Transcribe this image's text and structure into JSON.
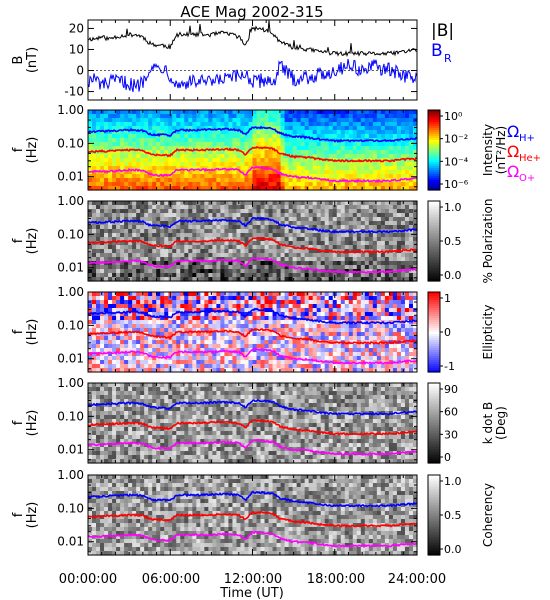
{
  "title": "ACE Mag 2002-315",
  "colors": {
    "black": "#000000",
    "blue": "#0000ff",
    "red": "#ff0000",
    "magenta": "#ff00ff"
  },
  "top_legend": {
    "b_abs": "|B|",
    "b_r": "B",
    "b_r_sub": "R"
  },
  "freq_legend": {
    "h": {
      "sym": "Ω",
      "sub": "H+"
    },
    "he": {
      "sym": "Ω",
      "sub": "He+"
    },
    "o": {
      "sym": "Ω",
      "sub": "O+"
    }
  },
  "x_axis": {
    "label": "Time (UT)",
    "range_hours": [
      0,
      24
    ],
    "ticks": [
      "00:00:00",
      "06:00:00",
      "12:00:00",
      "18:00:00",
      "24:00:00"
    ]
  },
  "chart_data": [
    {
      "type": "line",
      "panel": "B",
      "ylabel": "B",
      "yunit": "(nT)",
      "ylim": [
        -14,
        24
      ],
      "yticks": [
        "20",
        "10",
        "0",
        "-10"
      ],
      "x_hours": [
        0,
        0.5,
        1,
        1.5,
        2,
        3,
        3.5,
        4,
        4.5,
        5,
        5.5,
        6,
        6.5,
        7,
        8,
        9,
        10,
        11,
        11.5,
        12,
        12.5,
        13,
        13.5,
        14,
        14.5,
        15,
        16,
        17,
        18,
        19,
        20,
        21,
        22,
        23,
        24
      ],
      "series": [
        {
          "name": "|B|",
          "color": "#000000",
          "values": [
            15,
            15,
            16,
            15,
            16,
            17,
            17,
            16,
            13,
            12,
            12,
            11,
            17,
            17,
            17,
            17,
            18,
            16,
            12,
            20,
            20,
            19,
            17,
            14,
            12,
            11,
            10,
            9,
            8,
            8,
            8,
            8,
            8,
            9,
            10
          ]
        },
        {
          "name": "B_R",
          "color": "#0000ff",
          "values": [
            -5,
            -4,
            -7,
            -6,
            -5,
            -6,
            -8,
            -5,
            2,
            1,
            2,
            -2,
            -7,
            -6,
            -5,
            -6,
            -4,
            -3,
            -1,
            -6,
            -5,
            -4,
            -6,
            2,
            -1,
            -4,
            -3,
            -2,
            0,
            3,
            0,
            2,
            0,
            -2,
            -4
          ]
        }
      ]
    },
    {
      "type": "heatmap",
      "panel": "Intensity",
      "ylabel": "f",
      "yunit": "(Hz)",
      "ylim_hz": [
        0.004,
        1.0
      ],
      "ylog": true,
      "yticks": [
        "1.00",
        "0.10",
        "0.01"
      ],
      "colorbar": {
        "label": "Intensity",
        "unit": "(nT²/Hz)",
        "ticks": [
          "10⁰",
          "10⁻²",
          "10⁻⁴",
          "10⁻⁶"
        ]
      }
    },
    {
      "type": "heatmap",
      "panel": "Polarization",
      "ylabel": "f",
      "yunit": "(Hz)",
      "ylog": true,
      "yticks": [
        "1.00",
        "0.10",
        "0.01"
      ],
      "colorbar": {
        "label": "% Polarization",
        "unit": "",
        "ticks": [
          "1.0",
          "0.5",
          "0.0"
        ]
      }
    },
    {
      "type": "heatmap",
      "panel": "Ellipticity",
      "ylabel": "f",
      "yunit": "(Hz)",
      "ylog": true,
      "yticks": [
        "1.00",
        "0.10",
        "0.01"
      ],
      "colorbar": {
        "label": "Ellipticity",
        "unit": "",
        "ticks": [
          "1",
          "0",
          "-1"
        ]
      }
    },
    {
      "type": "heatmap",
      "panel": "kdotB",
      "ylabel": "f",
      "yunit": "(Hz)",
      "ylog": true,
      "yticks": [
        "1.00",
        "0.10",
        "0.01"
      ],
      "colorbar": {
        "label": "k dot B",
        "unit": "(Deg)",
        "ticks": [
          "90",
          "60",
          "30",
          "0"
        ]
      }
    },
    {
      "type": "heatmap",
      "panel": "Coherency",
      "ylabel": "f",
      "yunit": "(Hz)",
      "ylog": true,
      "yticks": [
        "1.00",
        "0.10",
        "0.01"
      ],
      "colorbar": {
        "label": "Coherency",
        "unit": "",
        "ticks": [
          "1.0",
          "0.5",
          "0.0"
        ]
      }
    }
  ],
  "gyrofrequency_lines": {
    "x_hours": [
      0,
      1,
      2,
      3,
      3.5,
      4,
      4.5,
      5,
      5.5,
      6,
      6.5,
      7,
      8,
      9,
      10,
      11,
      11.5,
      12,
      12.5,
      13,
      13.5,
      14,
      14.5,
      15,
      16,
      17,
      18,
      19,
      20,
      21,
      22,
      23,
      24
    ],
    "series": [
      {
        "name": "Ω_H+",
        "color": "#0000ff",
        "values_hz": [
          0.22,
          0.23,
          0.24,
          0.25,
          0.25,
          0.24,
          0.19,
          0.18,
          0.18,
          0.17,
          0.25,
          0.25,
          0.25,
          0.26,
          0.27,
          0.25,
          0.18,
          0.3,
          0.3,
          0.29,
          0.27,
          0.2,
          0.18,
          0.16,
          0.15,
          0.13,
          0.12,
          0.12,
          0.12,
          0.12,
          0.12,
          0.13,
          0.14
        ]
      },
      {
        "name": "Ω_He+",
        "color": "#ff0000",
        "values_hz": [
          0.055,
          0.058,
          0.06,
          0.063,
          0.063,
          0.06,
          0.048,
          0.045,
          0.045,
          0.043,
          0.063,
          0.063,
          0.063,
          0.065,
          0.068,
          0.063,
          0.045,
          0.075,
          0.075,
          0.073,
          0.068,
          0.05,
          0.045,
          0.04,
          0.038,
          0.033,
          0.03,
          0.03,
          0.03,
          0.03,
          0.03,
          0.033,
          0.035
        ]
      },
      {
        "name": "Ω_O+",
        "color": "#ff00ff",
        "values_hz": [
          0.014,
          0.0145,
          0.015,
          0.016,
          0.016,
          0.015,
          0.012,
          0.011,
          0.011,
          0.011,
          0.016,
          0.016,
          0.016,
          0.016,
          0.017,
          0.016,
          0.011,
          0.019,
          0.019,
          0.018,
          0.017,
          0.0125,
          0.011,
          0.01,
          0.0095,
          0.0083,
          0.0075,
          0.0075,
          0.0075,
          0.0075,
          0.0075,
          0.0083,
          0.0088
        ]
      }
    ]
  }
}
